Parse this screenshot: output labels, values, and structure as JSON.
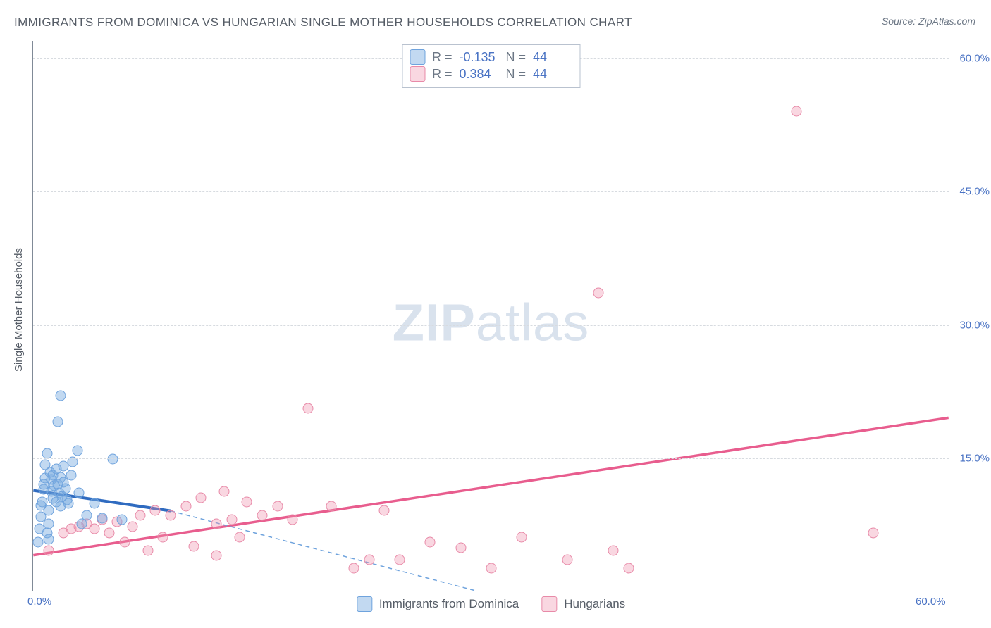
{
  "title": "IMMIGRANTS FROM DOMINICA VS HUNGARIAN SINGLE MOTHER HOUSEHOLDS CORRELATION CHART",
  "source": "Source: ZipAtlas.com",
  "y_axis_label": "Single Mother Households",
  "watermark_zip": "ZIP",
  "watermark_atlas": "atlas",
  "chart": {
    "type": "scatter",
    "xlim": [
      0,
      60
    ],
    "ylim": [
      0,
      62
    ],
    "x_ticks": [
      {
        "v": 0,
        "label": "0.0%"
      },
      {
        "v": 60,
        "label": "60.0%"
      }
    ],
    "y_ticks": [
      {
        "v": 15,
        "label": "15.0%"
      },
      {
        "v": 30,
        "label": "30.0%"
      },
      {
        "v": 45,
        "label": "45.0%"
      },
      {
        "v": 60,
        "label": "60.0%"
      }
    ],
    "grid_color": "#d7dbe0",
    "background_color": "#ffffff",
    "axis_color": "#808a97",
    "tick_label_color": "#4a73c4",
    "text_color": "#555c66"
  },
  "series": {
    "blue": {
      "label": "Immigrants from Dominica",
      "fill_color": "rgba(120,170,225,0.45)",
      "stroke_color": "#6fa3dd",
      "line_color": "#2f6bc0",
      "dash_color": "#6fa3dd",
      "points": [
        [
          0.3,
          5.5
        ],
        [
          0.4,
          7.0
        ],
        [
          0.5,
          8.3
        ],
        [
          0.5,
          9.6
        ],
        [
          0.6,
          10.0
        ],
        [
          0.7,
          11.4
        ],
        [
          0.7,
          12.0
        ],
        [
          0.8,
          12.7
        ],
        [
          0.8,
          14.2
        ],
        [
          0.9,
          15.5
        ],
        [
          1.0,
          9.0
        ],
        [
          1.0,
          7.5
        ],
        [
          1.1,
          13.3
        ],
        [
          1.2,
          11.2
        ],
        [
          1.2,
          12.5
        ],
        [
          1.3,
          10.4
        ],
        [
          1.3,
          13.0
        ],
        [
          1.4,
          11.8
        ],
        [
          1.5,
          10.0
        ],
        [
          1.5,
          13.7
        ],
        [
          1.6,
          12.0
        ],
        [
          1.7,
          11.0
        ],
        [
          1.8,
          9.5
        ],
        [
          1.8,
          12.8
        ],
        [
          1.9,
          10.6
        ],
        [
          2.0,
          14.0
        ],
        [
          2.0,
          12.2
        ],
        [
          2.1,
          11.5
        ],
        [
          2.2,
          10.2
        ],
        [
          2.3,
          9.8
        ],
        [
          2.5,
          13.0
        ],
        [
          2.6,
          14.5
        ],
        [
          2.9,
          15.8
        ],
        [
          3.0,
          11.0
        ],
        [
          3.2,
          7.5
        ],
        [
          3.5,
          8.5
        ],
        [
          4.0,
          9.8
        ],
        [
          4.5,
          8.2
        ],
        [
          5.2,
          14.8
        ],
        [
          5.8,
          8.0
        ],
        [
          1.6,
          19.0
        ],
        [
          1.8,
          22.0
        ],
        [
          0.9,
          6.5
        ],
        [
          1.0,
          5.8
        ]
      ],
      "trend_solid": {
        "x1": 0,
        "y1": 11.3,
        "x2": 9,
        "y2": 9.0
      },
      "trend_dash": {
        "x1": 9,
        "y1": 9.0,
        "x2": 29,
        "y2": 0
      }
    },
    "pink": {
      "label": "Hungarians",
      "fill_color": "rgba(238,140,170,0.35)",
      "stroke_color": "#e88aa8",
      "line_color": "#e85d8e",
      "points": [
        [
          1.0,
          4.5
        ],
        [
          2.0,
          6.5
        ],
        [
          2.5,
          7.0
        ],
        [
          3.0,
          7.2
        ],
        [
          3.5,
          7.5
        ],
        [
          4.0,
          7.0
        ],
        [
          4.5,
          8.0
        ],
        [
          5.0,
          6.5
        ],
        [
          5.5,
          7.8
        ],
        [
          6.0,
          5.5
        ],
        [
          6.5,
          7.2
        ],
        [
          7.0,
          8.5
        ],
        [
          7.5,
          4.5
        ],
        [
          8.0,
          9.0
        ],
        [
          8.5,
          6.0
        ],
        [
          9.0,
          8.5
        ],
        [
          10.0,
          9.5
        ],
        [
          10.5,
          5.0
        ],
        [
          11.0,
          10.5
        ],
        [
          12.0,
          7.5
        ],
        [
          12.5,
          11.2
        ],
        [
          13.0,
          8.0
        ],
        [
          13.5,
          6.0
        ],
        [
          14.0,
          10.0
        ],
        [
          15.0,
          8.5
        ],
        [
          16.0,
          9.5
        ],
        [
          17.0,
          8.0
        ],
        [
          18.0,
          20.5
        ],
        [
          19.5,
          9.5
        ],
        [
          21.0,
          2.5
        ],
        [
          22.0,
          3.5
        ],
        [
          23.0,
          9.0
        ],
        [
          24.0,
          3.5
        ],
        [
          26.0,
          5.5
        ],
        [
          28.0,
          4.8
        ],
        [
          30.0,
          2.5
        ],
        [
          32.0,
          6.0
        ],
        [
          35.0,
          3.5
        ],
        [
          37.0,
          33.5
        ],
        [
          38.0,
          4.5
        ],
        [
          39.0,
          2.5
        ],
        [
          50.0,
          54.0
        ],
        [
          55.0,
          6.5
        ],
        [
          12.0,
          4.0
        ]
      ],
      "trend_solid": {
        "x1": 0,
        "y1": 4.0,
        "x2": 60,
        "y2": 19.5
      }
    }
  },
  "legend_top": [
    {
      "series": "blue",
      "r_label": "R =",
      "r": "-0.135",
      "n_label": "N =",
      "n": "44"
    },
    {
      "series": "pink",
      "r_label": "R =",
      "r": "0.384",
      "n_label": "N =",
      "n": "44"
    }
  ],
  "legend_bottom": [
    {
      "series": "blue",
      "label": "Immigrants from Dominica"
    },
    {
      "series": "pink",
      "label": "Hungarians"
    }
  ]
}
